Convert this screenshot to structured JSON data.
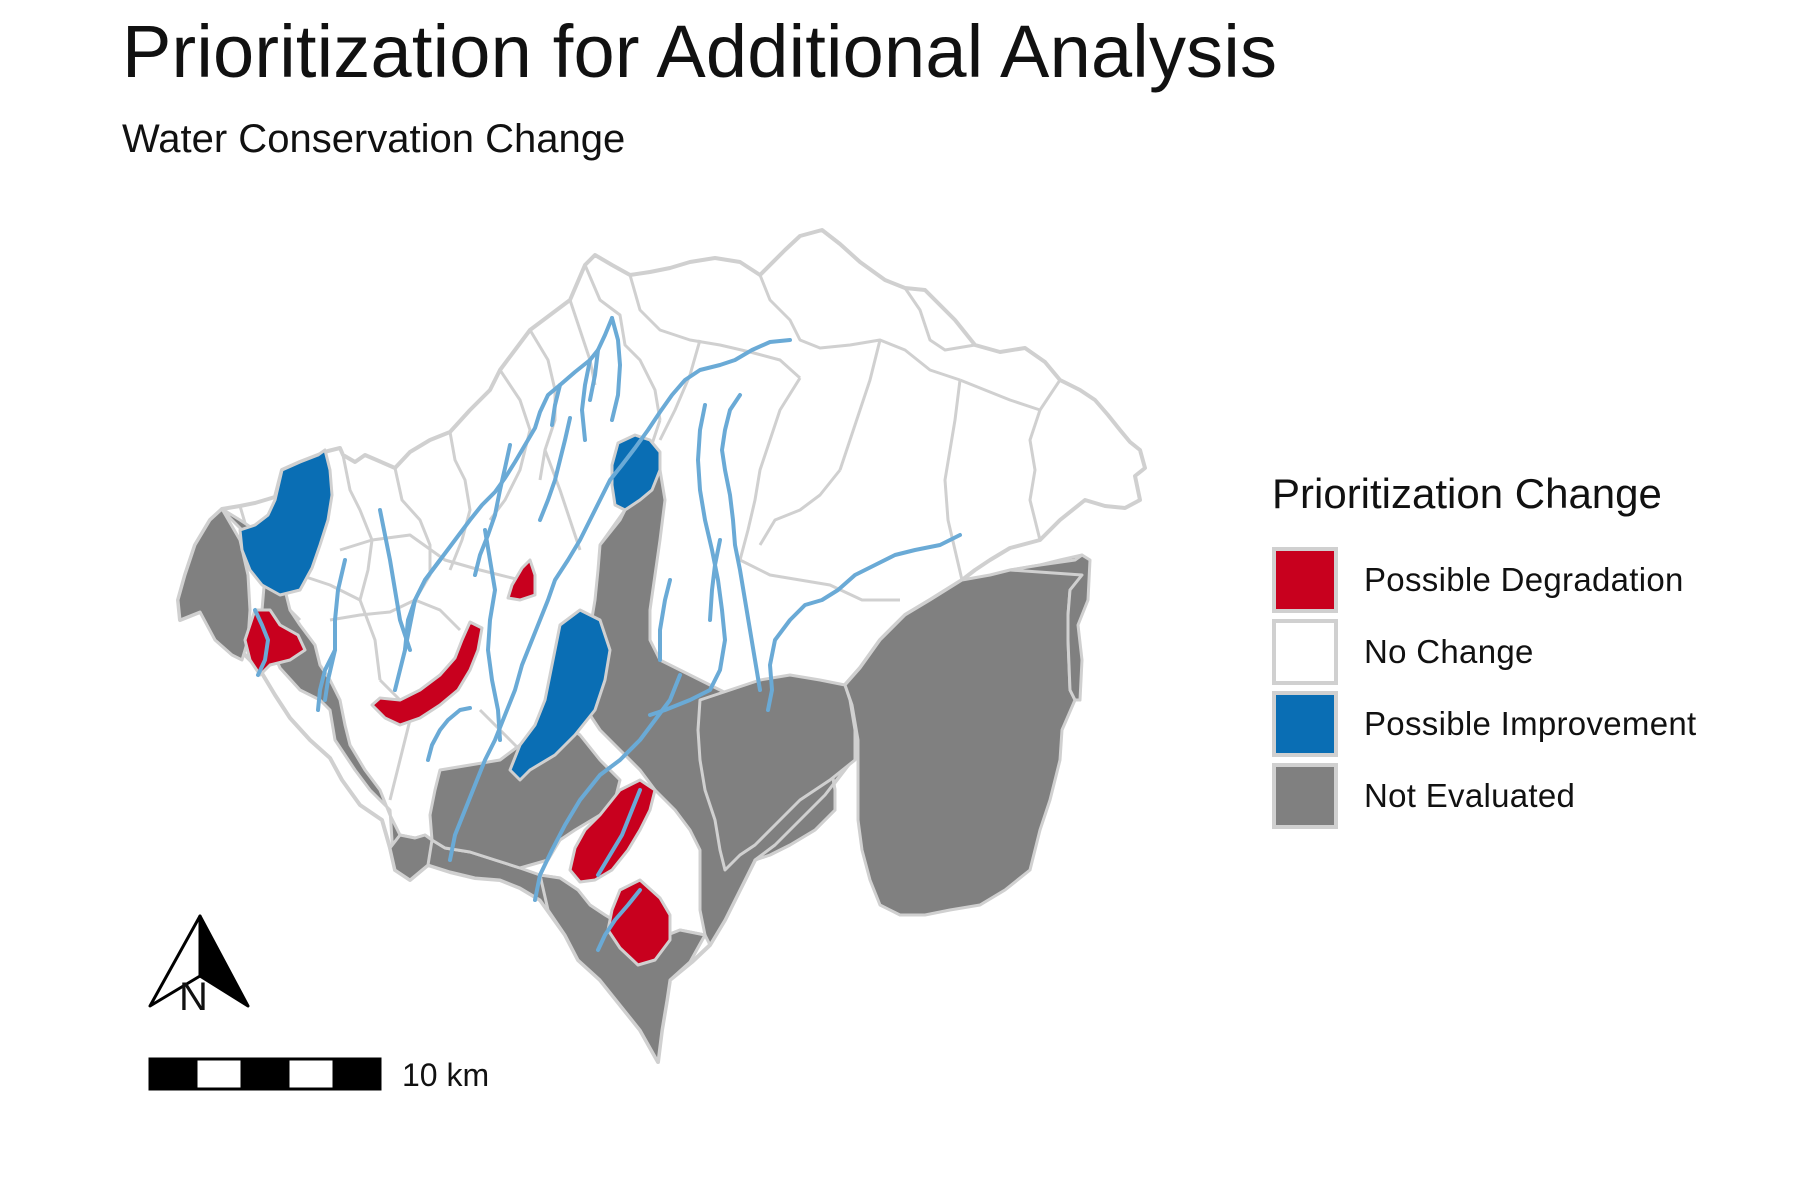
{
  "title": "Prioritization for Additional Analysis",
  "subtitle": "Water Conservation Change",
  "legend": {
    "title": "Prioritization Change",
    "items": [
      {
        "label": "Possible Degradation",
        "color": "#c8001e"
      },
      {
        "label": "No Change",
        "color": "#ffffff"
      },
      {
        "label": "Possible Improvement",
        "color": "#0a6eb4"
      },
      {
        "label": "Not Evaluated",
        "color": "#808080"
      }
    ]
  },
  "colors": {
    "boundary": "#d0d0d0",
    "stream": "#6aaad6",
    "degradation": "#c8001e",
    "improvement": "#0a6eb4",
    "not_evaluated": "#808080",
    "no_change": "#ffffff"
  },
  "north_arrow": {
    "label": "N",
    "icon": "north-arrow-icon"
  },
  "scale_bar": {
    "label": "10 km",
    "icon": "scale-bar-icon"
  }
}
